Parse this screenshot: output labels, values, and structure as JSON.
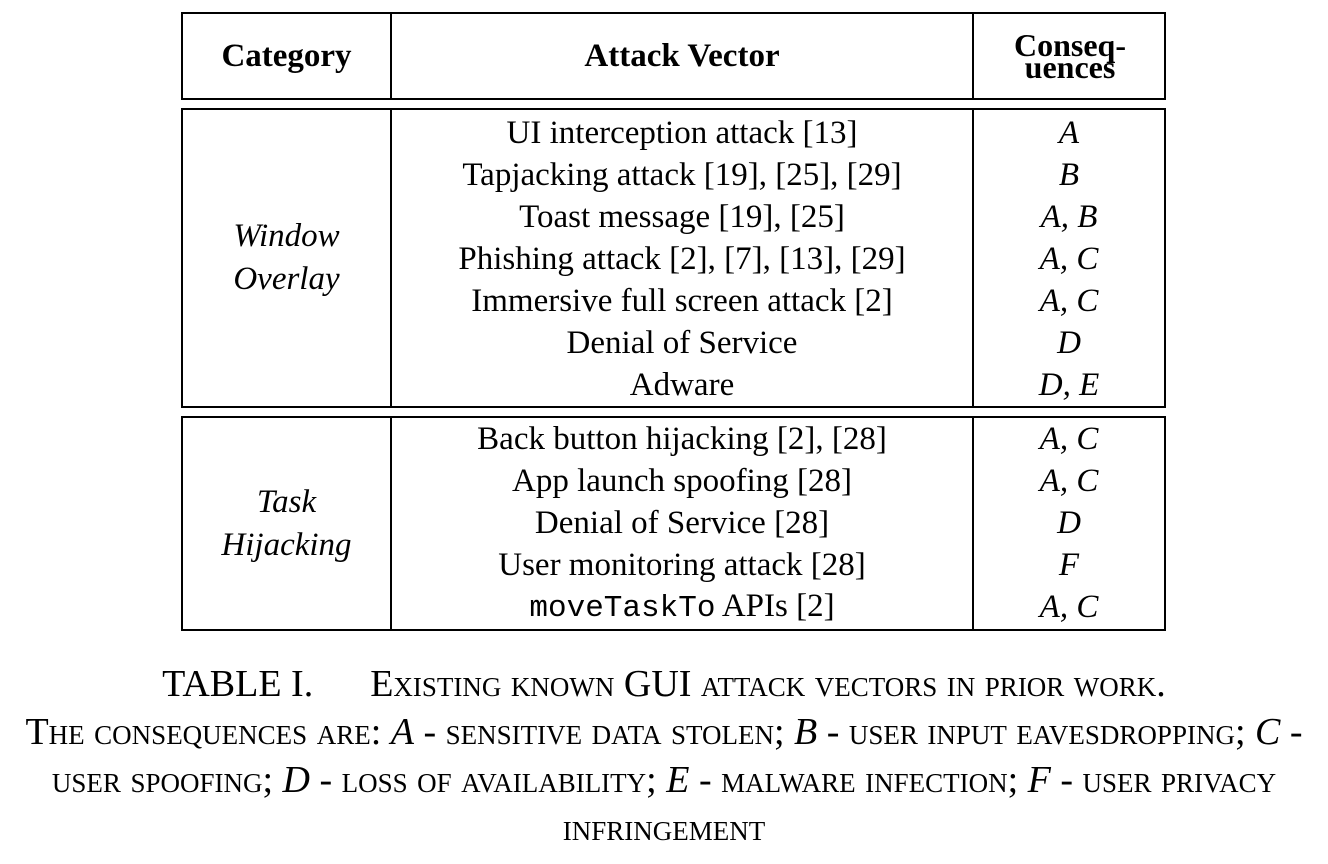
{
  "table": {
    "headers": {
      "category": "Category",
      "vector": "Attack Vector",
      "consequences_line1": "Conseq-",
      "consequences_line2": "uences"
    },
    "sections": [
      {
        "category_line1": "Window",
        "category_line2": "Overlay",
        "rows": [
          {
            "vector": "UI interception attack [13]",
            "consequences": "A"
          },
          {
            "vector": "Tapjacking attack [19], [25], [29]",
            "consequences": "B"
          },
          {
            "vector": "Toast message [19], [25]",
            "consequences": "A, B"
          },
          {
            "vector": "Phishing attack [2], [7], [13], [29]",
            "consequences": "A, C"
          },
          {
            "vector": "Immersive full screen attack [2]",
            "consequences": "A, C"
          },
          {
            "vector": "Denial of Service",
            "consequences": "D"
          },
          {
            "vector": "Adware",
            "consequences": "D, E"
          }
        ]
      },
      {
        "category_line1": "Task",
        "category_line2": "Hijacking",
        "rows": [
          {
            "vector": "Back button hijacking [2], [28]",
            "consequences": "A, C"
          },
          {
            "vector": "App launch spoofing [28]",
            "consequences": "A, C"
          },
          {
            "vector": "Denial of Service [28]",
            "consequences": "D"
          },
          {
            "vector": "User monitoring attack [28]",
            "consequences": "F"
          },
          {
            "vector_code": "moveTaskTo",
            "vector_rest": " APIs [2]",
            "consequences": "A, C"
          }
        ]
      }
    ]
  },
  "caption": {
    "label": "TABLE I.",
    "title": "Existing known GUI attack vectors in prior work.",
    "intro": "The consequences are:",
    "items": [
      {
        "key": "A",
        "text": " - sensitive data stolen;"
      },
      {
        "key": "B",
        "text": " - user input eavesdropping;"
      },
      {
        "key": "C",
        "text": " - user spoofing;"
      },
      {
        "key": "D",
        "text": " - loss of availability;"
      },
      {
        "key": "E",
        "text": " - malware infection;"
      },
      {
        "key": "F",
        "text": " - user privacy infringement"
      }
    ]
  }
}
